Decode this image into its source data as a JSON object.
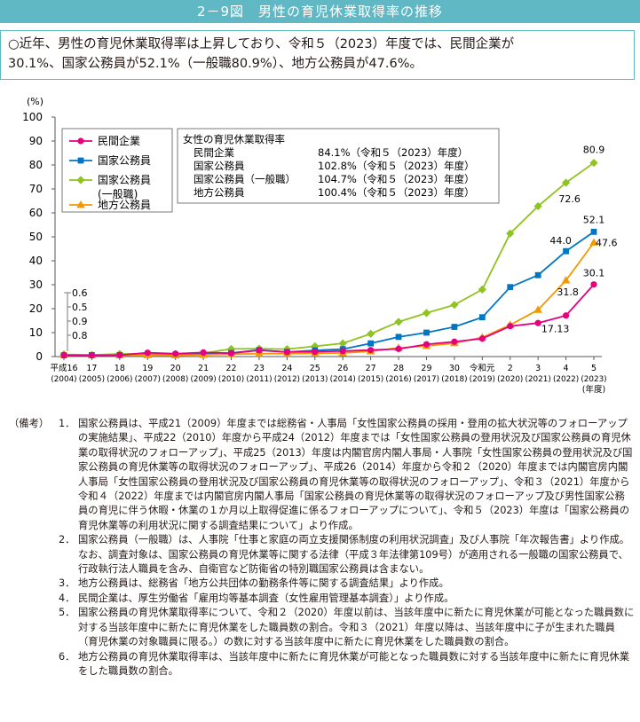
{
  "header": {
    "title": "2－9図　男性の育児休業取得率の推移"
  },
  "summary": {
    "text": "○近年、男性の育児休業取得率は上昇しており、令和５（2023）年度では、民間企業が\n30.1%、国家公務員が52.1%（一般職80.9%）、地方公務員が47.6%。"
  },
  "chart_data": {
    "type": "line",
    "y_unit": "(%)",
    "x_unit": "(年度)",
    "ylim": [
      0,
      100
    ],
    "yticks": [
      0,
      10,
      20,
      30,
      40,
      50,
      60,
      70,
      80,
      90,
      100
    ],
    "grid": false,
    "legend_placement": "top-left",
    "categories": [
      {
        "era": "平成16",
        "year": "(2004)"
      },
      {
        "era": "17",
        "year": "(2005)"
      },
      {
        "era": "18",
        "year": "(2006)"
      },
      {
        "era": "19",
        "year": "(2007)"
      },
      {
        "era": "20",
        "year": "(2008)"
      },
      {
        "era": "21",
        "year": "(2009)"
      },
      {
        "era": "22",
        "year": "(2010)"
      },
      {
        "era": "23",
        "year": "(2011)"
      },
      {
        "era": "24",
        "year": "(2012)"
      },
      {
        "era": "25",
        "year": "(2013)"
      },
      {
        "era": "26",
        "year": "(2014)"
      },
      {
        "era": "27",
        "year": "(2015)"
      },
      {
        "era": "28",
        "year": "(2016)"
      },
      {
        "era": "29",
        "year": "(2017)"
      },
      {
        "era": "30",
        "year": "(2018)"
      },
      {
        "era": "令和元",
        "year": "(2019)"
      },
      {
        "era": "2",
        "year": "(2020)"
      },
      {
        "era": "3",
        "year": "(2021)"
      },
      {
        "era": "4",
        "year": "(2022)"
      },
      {
        "era": "5",
        "year": "(2023)"
      }
    ],
    "series": [
      {
        "name": "民間企業",
        "color": "#e4007f",
        "marker": "circle",
        "values": [
          0.6,
          0.5,
          0.6,
          1.6,
          1.2,
          1.7,
          1.4,
          2.6,
          1.9,
          2.0,
          2.3,
          2.7,
          3.2,
          5.1,
          6.2,
          7.5,
          12.7,
          14.0,
          17.13,
          30.1
        ]
      },
      {
        "name": "国家公務員",
        "color": "#0075c2",
        "marker": "square",
        "values": [
          0.5,
          0.6,
          0.6,
          0.7,
          0.7,
          1.0,
          1.5,
          2.7,
          1.9,
          2.6,
          3.1,
          5.5,
          8.2,
          10.0,
          12.4,
          16.4,
          29.0,
          34.0,
          44.0,
          52.1
        ]
      },
      {
        "name": "国家公務員\n(一般職)",
        "color": "#8fc31f",
        "marker": "diamond",
        "values": [
          0.9,
          0.7,
          1.1,
          1.1,
          1.0,
          1.4,
          3.2,
          3.3,
          3.1,
          4.3,
          5.5,
          9.5,
          14.5,
          18.2,
          21.6,
          28.0,
          51.4,
          62.8,
          72.6,
          80.9
        ]
      },
      {
        "name": "地方公務員",
        "color": "#f39800",
        "marker": "triangle",
        "values": [
          0.8,
          0.5,
          0.6,
          0.6,
          0.5,
          0.7,
          1.0,
          1.2,
          1.2,
          1.3,
          1.5,
          2.2,
          3.6,
          4.4,
          5.6,
          8.0,
          13.2,
          19.5,
          31.8,
          47.6
        ]
      }
    ],
    "data_labels": {
      "start": [
        "0.6",
        "0.5",
        "0.9",
        "0.8"
      ],
      "end": [
        "30.1",
        "52.1",
        "80.9",
        "47.6"
      ],
      "r4_private": "17.13",
      "r4_national": "44.0",
      "r4_general": "72.6",
      "r4_local": "31.8"
    },
    "infobox": {
      "title": "女性の育児休業取得率",
      "rows": [
        {
          "label": "民間企業",
          "value": "84.1%（令和５（2023）年度）"
        },
        {
          "label": "国家公務員",
          "value": "102.8%（令和５（2023）年度）"
        },
        {
          "label": "国家公務員（一般職）",
          "value": "104.7%（令和５（2023）年度）"
        },
        {
          "label": "地方公務員",
          "value": "100.4%（令和５（2023）年度）"
        }
      ]
    }
  },
  "notes": {
    "head": "（備考）",
    "items": [
      {
        "num": "1．",
        "text": "国家公務員は、平成21（2009）年度までは総務省・人事局「女性国家公務員の採用・登用の拡大状況等のフォローアップの実施結果」、平成22（2010）年度から平成24（2012）年度までは「女性国家公務員の登用状況及び国家公務員の育児休業の取得状況のフォローアップ」、平成25（2013）年度は内閣官房内閣人事局・人事院「女性国家公務員の登用状況及び国家公務員の育児休業等の取得状況のフォローアップ」、平成26（2014）年度から令和２（2020）年度までは内閣官房内閣人事局「女性国家公務員の登用状況及び国家公務員の育児休業等の取得状況のフォローアップ」、令和３（2021）年度から令和４（2022）年度までは内閣官房内閣人事局「国家公務員の育児休業等の取得状況のフォローアップ及び男性国家公務員の育児に伴う休暇・休業の１か月以上取得促進に係るフォローアップについて」、令和５（2023）年度は「国家公務員の育児休業等の利用状況に関する調査結果について」より作成。"
      },
      {
        "num": "2．",
        "text": "国家公務員（一般職）は、人事院「仕事と家庭の両立支援関係制度の利用状況調査」及び人事院「年次報告書」より作成。"
      },
      {
        "num": "",
        "text": "なお、調査対象は、国家公務員の育児休業等に関する法律（平成３年法律第109号）が適用される一般職の国家公務員で、行政執行法人職員を含み、自衛官など防衛省の特別職国家公務員は含まない。"
      },
      {
        "num": "3．",
        "text": "地方公務員は、総務省「地方公共団体の勤務条件等に関する調査結果」より作成。"
      },
      {
        "num": "4．",
        "text": "民間企業は、厚生労働省「雇用均等基本調査（女性雇用管理基本調査）」より作成。"
      },
      {
        "num": "5．",
        "text": "国家公務員の育児休業取得率について、令和２（2020）年度以前は、当該年度中に新たに育児休業が可能となった職員数に対する当該年度中に新たに育児休業をした職員数の割合。令和３（2021）年度以降は、当該年度中に子が生まれた職員（育児休業の対象職員に限る。）の数に対する当該年度中に新たに育児休業をした職員数の割合。"
      },
      {
        "num": "6．",
        "text": "地方公務員の育児休業取得率は、当該年度中に新たに育児休業が可能となった職員数に対する当該年度中に新たに育児休業をした職員数の割合。"
      }
    ]
  }
}
